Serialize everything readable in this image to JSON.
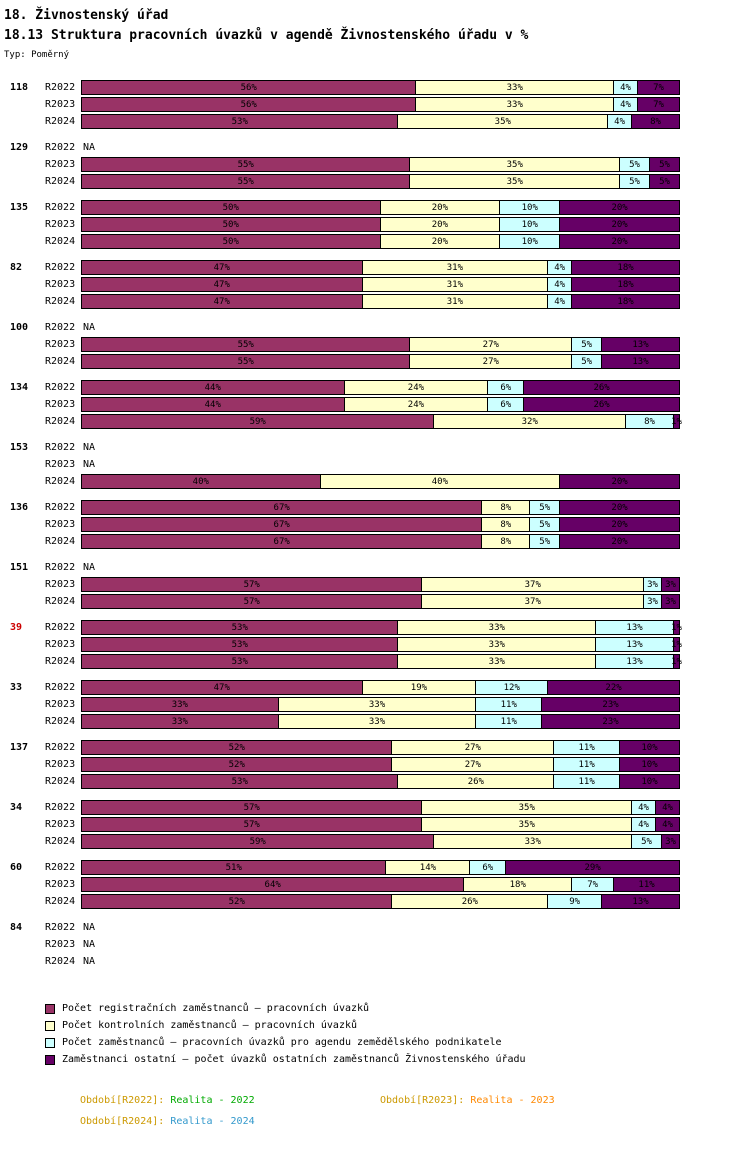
{
  "header": {
    "title": "18. Živnostenský úřad",
    "subtitle": "18.13 Struktura pracovních úvazků v agendě Živnostenského úřadu v %",
    "type_label": "Typ: Poměrný"
  },
  "chart_data": {
    "type": "bar",
    "orientation": "horizontal",
    "stacked": true,
    "value_unit": "%",
    "x_range": [
      0,
      100
    ],
    "grid": false,
    "legend_position": "bottom",
    "na_text": "NA",
    "series": [
      {
        "key": "registracni",
        "name": "Počet registračních zaměstnanců – pracovních úvazků",
        "color": "#993366"
      },
      {
        "key": "kontrolni",
        "name": "Počet kontrolních zaměstnanců – pracovních úvazků",
        "color": "#FFFFCC"
      },
      {
        "key": "zemedelsky",
        "name": "Počet zaměstnanců – pracovních úvazků pro agendu zemědělského podnikatele",
        "color": "#CCFFFF"
      },
      {
        "key": "ostatni",
        "name": "Zaměstnanci ostatní – počet úvazků ostatních zaměstnanců Živnostenského úřadu",
        "color": "#660066"
      }
    ],
    "groups": [
      {
        "id": "118",
        "id_color": "#000000",
        "rows": [
          {
            "label": "R2022",
            "values": [
              56,
              33,
              4,
              7
            ]
          },
          {
            "label": "R2023",
            "values": [
              56,
              33,
              4,
              7
            ]
          },
          {
            "label": "R2024",
            "values": [
              53,
              35,
              4,
              8
            ]
          }
        ]
      },
      {
        "id": "129",
        "id_color": "#000000",
        "rows": [
          {
            "label": "R2022",
            "na": true
          },
          {
            "label": "R2023",
            "values": [
              55,
              35,
              5,
              5
            ]
          },
          {
            "label": "R2024",
            "values": [
              55,
              35,
              5,
              5
            ]
          }
        ]
      },
      {
        "id": "135",
        "id_color": "#000000",
        "rows": [
          {
            "label": "R2022",
            "values": [
              50,
              20,
              10,
              20
            ]
          },
          {
            "label": "R2023",
            "values": [
              50,
              20,
              10,
              20
            ]
          },
          {
            "label": "R2024",
            "values": [
              50,
              20,
              10,
              20
            ]
          }
        ]
      },
      {
        "id": "82",
        "id_color": "#000000",
        "rows": [
          {
            "label": "R2022",
            "values": [
              47,
              31,
              4,
              18
            ]
          },
          {
            "label": "R2023",
            "values": [
              47,
              31,
              4,
              18
            ]
          },
          {
            "label": "R2024",
            "values": [
              47,
              31,
              4,
              18
            ]
          }
        ]
      },
      {
        "id": "100",
        "id_color": "#000000",
        "rows": [
          {
            "label": "R2022",
            "na": true
          },
          {
            "label": "R2023",
            "values": [
              55,
              27,
              5,
              13
            ]
          },
          {
            "label": "R2024",
            "values": [
              55,
              27,
              5,
              13
            ]
          }
        ]
      },
      {
        "id": "134",
        "id_color": "#000000",
        "rows": [
          {
            "label": "R2022",
            "values": [
              44,
              24,
              6,
              26
            ]
          },
          {
            "label": "R2023",
            "values": [
              44,
              24,
              6,
              26
            ]
          },
          {
            "label": "R2024",
            "values": [
              59,
              32,
              8,
              1
            ]
          }
        ]
      },
      {
        "id": "153",
        "id_color": "#000000",
        "rows": [
          {
            "label": "R2022",
            "na": true
          },
          {
            "label": "R2023",
            "na": true
          },
          {
            "label": "R2024",
            "values": [
              40,
              40,
              0,
              20
            ]
          }
        ]
      },
      {
        "id": "136",
        "id_color": "#000000",
        "rows": [
          {
            "label": "R2022",
            "values": [
              67,
              8,
              5,
              20
            ]
          },
          {
            "label": "R2023",
            "values": [
              67,
              8,
              5,
              20
            ]
          },
          {
            "label": "R2024",
            "values": [
              67,
              8,
              5,
              20
            ]
          }
        ]
      },
      {
        "id": "151",
        "id_color": "#000000",
        "rows": [
          {
            "label": "R2022",
            "na": true
          },
          {
            "label": "R2023",
            "values": [
              57,
              37,
              3,
              3
            ]
          },
          {
            "label": "R2024",
            "values": [
              57,
              37,
              3,
              3
            ]
          }
        ]
      },
      {
        "id": "39",
        "id_color": "#CC0000",
        "rows": [
          {
            "label": "R2022",
            "values": [
              53,
              33,
              13,
              1
            ]
          },
          {
            "label": "R2023",
            "values": [
              53,
              33,
              13,
              1
            ]
          },
          {
            "label": "R2024",
            "values": [
              53,
              33,
              13,
              1
            ]
          }
        ]
      },
      {
        "id": "33",
        "id_color": "#000000",
        "rows": [
          {
            "label": "R2022",
            "values": [
              47,
              19,
              12,
              22
            ]
          },
          {
            "label": "R2023",
            "values": [
              33,
              33,
              11,
              23
            ]
          },
          {
            "label": "R2024",
            "values": [
              33,
              33,
              11,
              23
            ]
          }
        ]
      },
      {
        "id": "137",
        "id_color": "#000000",
        "rows": [
          {
            "label": "R2022",
            "values": [
              52,
              27,
              11,
              10
            ]
          },
          {
            "label": "R2023",
            "values": [
              52,
              27,
              11,
              10
            ]
          },
          {
            "label": "R2024",
            "values": [
              53,
              26,
              11,
              10
            ]
          }
        ]
      },
      {
        "id": "34",
        "id_color": "#000000",
        "rows": [
          {
            "label": "R2022",
            "values": [
              57,
              35,
              4,
              4
            ]
          },
          {
            "label": "R2023",
            "values": [
              57,
              35,
              4,
              4
            ]
          },
          {
            "label": "R2024",
            "values": [
              59,
              33,
              5,
              3
            ]
          }
        ]
      },
      {
        "id": "60",
        "id_color": "#000000",
        "rows": [
          {
            "label": "R2022",
            "values": [
              51,
              14,
              6,
              29
            ]
          },
          {
            "label": "R2023",
            "values": [
              64,
              18,
              7,
              11
            ]
          },
          {
            "label": "R2024",
            "values": [
              52,
              26,
              9,
              13
            ]
          }
        ]
      },
      {
        "id": "84",
        "id_color": "#000000",
        "rows": [
          {
            "label": "R2022",
            "na": true
          },
          {
            "label": "R2023",
            "na": true
          },
          {
            "label": "R2024",
            "na": true
          }
        ]
      }
    ]
  },
  "footer": [
    {
      "label": "Období[R2022]:",
      "label_color": "#CC9900",
      "value": "Realita - 2022",
      "value_color": "#00AA00"
    },
    {
      "label": "Období[R2023]:",
      "label_color": "#CC9900",
      "value": "Realita - 2023",
      "value_color": "#FF8800"
    },
    {
      "label": "Období[R2024]:",
      "label_color": "#CC9900",
      "value": "Realita - 2024",
      "value_color": "#3399CC"
    }
  ]
}
